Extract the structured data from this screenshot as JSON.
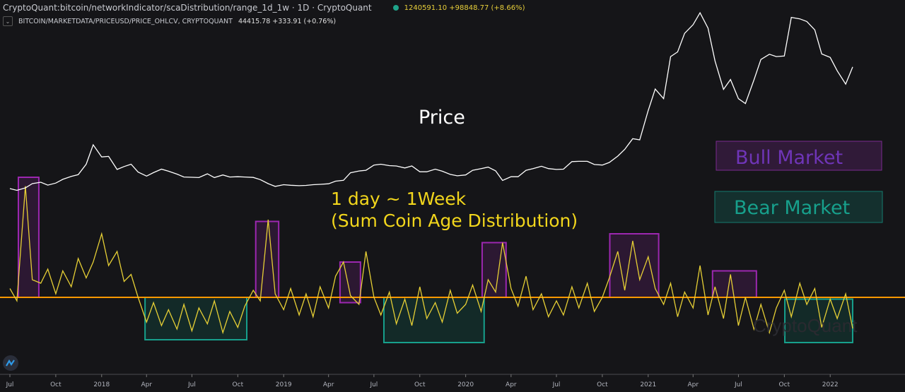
{
  "header": {
    "title": "CryptoQuant:bitcoin/networkIndicator/scaDistribution/range_1d_1w · 1D · CryptoQuant",
    "status_dot_color": "#1fa38a",
    "indicator_value": "1240591.10 +98848.77 (+8.66%)",
    "series2_label": "BITCOIN/MARKETDATA/PRICEUSD/PRICE_OHLCV, CRYPTOQUANT",
    "series2_value": "44415.78 +333.91 (+0.76%)"
  },
  "annotations": {
    "price_label": "Price",
    "indicator_label_1": "1 day ~ 1Week",
    "indicator_label_2": "(Sum Coin Age Distribution)",
    "legend_bull": "Bull Market",
    "legend_bear": "Bear Market",
    "watermark": "CryptoQuant"
  },
  "colors": {
    "background": "#151518",
    "price": "#ffffff",
    "indicator": "#e6cf35",
    "threshold": "#ff9800",
    "bull": "#9c27b0",
    "bull_text": "#6f35b8",
    "bear": "#17a08c"
  },
  "chart_data": {
    "type": "line",
    "x_tick_labels": [
      "Jul",
      "Oct",
      "2018",
      "Apr",
      "Jul",
      "Oct",
      "2019",
      "Apr",
      "Jul",
      "Oct",
      "2020",
      "Apr",
      "Jul",
      "Oct",
      "2021",
      "Apr",
      "Jul",
      "Oct",
      "2022"
    ],
    "x_tick_dates": [
      "2017-07-01",
      "2017-10-01",
      "2018-01-01",
      "2018-04-01",
      "2018-07-01",
      "2018-10-01",
      "2019-01-01",
      "2019-04-01",
      "2019-07-01",
      "2019-10-01",
      "2020-01-01",
      "2020-04-01",
      "2020-07-01",
      "2020-10-01",
      "2021-01-01",
      "2021-04-01",
      "2021-07-01",
      "2021-10-01",
      "2022-01-01"
    ],
    "price_scale": "linear",
    "price_range": [
      2500,
      67500
    ],
    "series": [
      {
        "name": "BITCOIN/MARKETDATA/PRICEUSD/PRICE_OHLCV",
        "values": [
          2500,
          1900,
          2750,
          4200,
          4700,
          3700,
          4400,
          5700,
          6700,
          7300,
          10900,
          17600,
          13400,
          13600,
          9100,
          10100,
          10900,
          8200,
          6800,
          8000,
          9200,
          8500,
          7500,
          6500,
          6400,
          6300,
          7600,
          6300,
          7200,
          6500,
          6600,
          6500,
          6350,
          5600,
          4200,
          3250,
          3850,
          3650,
          3500,
          3600,
          3850,
          3950,
          4150,
          5050,
          5350,
          7950,
          8550,
          8800,
          10600,
          10900,
          10400,
          10300,
          9600,
          10300,
          8300,
          8300,
          9200,
          8500,
          7400,
          6900,
          7200,
          8800,
          9400,
          9900,
          8600,
          5300,
          6600,
          6600,
          8800,
          9400,
          10200,
          9400,
          9100,
          9200,
          11800,
          11900,
          11900,
          10800,
          10600,
          11500,
          13700,
          16000,
          19700,
          19300,
          29400,
          36800,
          33500,
          48000,
          49600,
          56000,
          59000,
          63100,
          57800,
          46500,
          36700,
          40100,
          33500,
          31800,
          39900,
          47000,
          48800,
          48000,
          48200,
          61500,
          61000,
          60100,
          57200,
          48900,
          47700,
          43100,
          38500,
          44415.78
        ]
      },
      {
        "name": "scaDistribution range_1d_1w (millions)",
        "values": [
          3.5,
          2.8,
          9.3,
          4.0,
          3.8,
          4.6,
          3.2,
          4.5,
          3.6,
          5.2,
          4.1,
          5.0,
          6.6,
          4.8,
          5.6,
          3.9,
          4.3,
          3.0,
          1.6,
          2.7,
          1.4,
          2.3,
          1.2,
          2.6,
          1.1,
          2.4,
          1.5,
          2.8,
          1.0,
          2.2,
          1.3,
          2.5,
          3.4,
          2.8,
          7.4,
          3.2,
          2.3,
          3.5,
          2.0,
          3.2,
          1.9,
          3.6,
          2.4,
          4.2,
          5.0,
          3.1,
          2.6,
          5.6,
          3.0,
          2.0,
          3.3,
          1.5,
          2.9,
          1.4,
          3.6,
          1.8,
          2.7,
          1.6,
          3.4,
          2.1,
          2.6,
          3.7,
          2.2,
          4.0,
          3.3,
          6.1,
          3.5,
          2.5,
          4.2,
          2.3,
          3.2,
          1.9,
          2.8,
          2.0,
          3.6,
          2.4,
          3.8,
          2.2,
          3.0,
          4.1,
          5.6,
          3.4,
          6.2,
          4.0,
          5.3,
          3.5,
          2.6,
          3.8,
          1.9,
          3.3,
          2.4,
          4.8,
          2.0,
          3.6,
          1.8,
          4.3,
          1.4,
          3.0,
          1.2,
          2.6,
          1.0,
          2.4,
          3.4,
          1.9,
          3.8,
          2.6,
          3.5,
          1.3,
          2.9,
          1.8,
          3.2,
          1.24
        ]
      }
    ],
    "x_start": "2017-07-01",
    "x_interval": "semi-monthly (1st and 15th)",
    "threshold": 3.0,
    "bull_boxes": [
      {
        "start": "2017-07-18",
        "end": "2017-08-28",
        "top": 9.8,
        "bottom": 3.0
      },
      {
        "start": "2018-11-06",
        "end": "2018-12-22",
        "top": 7.3,
        "bottom": 3.0
      },
      {
        "start": "2019-04-24",
        "end": "2019-06-04",
        "top": 5.0,
        "bottom": 2.7
      },
      {
        "start": "2020-02-03",
        "end": "2020-03-22",
        "top": 6.1,
        "bottom": 3.0
      },
      {
        "start": "2020-10-16",
        "end": "2021-01-22",
        "top": 6.6,
        "bottom": 3.0
      },
      {
        "start": "2021-05-10",
        "end": "2021-08-06",
        "top": 4.5,
        "bottom": 3.0
      }
    ],
    "bear_boxes": [
      {
        "start": "2018-03-29",
        "end": "2018-10-19",
        "top": 3.0,
        "bottom": 0.6
      },
      {
        "start": "2019-07-21",
        "end": "2020-02-07",
        "top": 3.0,
        "bottom": 0.44
      },
      {
        "start": "2021-10-02",
        "end": "2022-02-15",
        "top": 2.9,
        "bottom": 0.44
      }
    ],
    "grid": false
  }
}
